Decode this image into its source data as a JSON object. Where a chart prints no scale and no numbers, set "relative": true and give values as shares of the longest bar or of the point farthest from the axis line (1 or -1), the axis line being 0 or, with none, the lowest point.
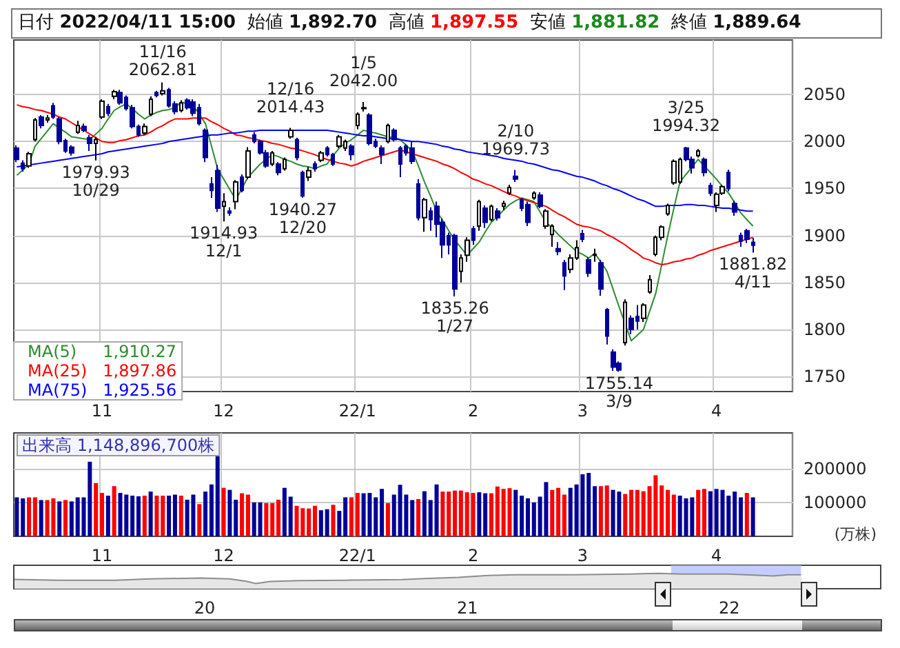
{
  "chart_data": [
    {
      "type": "candlestick",
      "colors": [
        "#000099",
        "#000099",
        "#ffffff",
        "#ffffff",
        "#000099",
        "#ffffff",
        "#000099",
        "#000099",
        "#000099",
        "#000099",
        "#ffffff",
        "#000099",
        "#000099",
        "#ffffff",
        "#ffffff",
        "#000099",
        "#ffffff",
        "#000099",
        "#000099",
        "#000099",
        "#000099",
        "#ffffff",
        "#ffffff",
        "#000099",
        "#ffffff",
        "#000099",
        "#000099",
        "#ffffff",
        "#000099",
        "#000099",
        "#000099",
        "#000099",
        "#000099",
        "#000099",
        "#ffffff",
        "#000099",
        "#ffffff",
        "#000099",
        "#ffffff",
        "#000099",
        "#000099",
        "#000099",
        "#ffffff",
        "#000099",
        "#ffffff",
        "#ffffff",
        "#000099",
        "#000099",
        "#ffffff",
        "#000099",
        "#ffffff",
        "#000099",
        "#000099",
        "#ffffff",
        "#ffffff",
        "#000099",
        "#ffffff",
        "#ffffff",
        "#000099",
        "#000099",
        "#000099",
        "#ffffff",
        "#000099",
        "#000099",
        "#000099",
        "#000099",
        "#000099",
        "#ffffff",
        "#000099",
        "#000099",
        "#000099",
        "#000099",
        "#000099",
        "#ffffff",
        "#ffffff",
        "#000099",
        "#ffffff",
        "#000099",
        "#ffffff",
        "#000099",
        "#ffffff",
        "#ffffff",
        "#000099",
        "#000099",
        "#000099",
        "#ffffff",
        "#000099",
        "#ffffff",
        "#ffffff",
        "#000099",
        "#000099",
        "#ffffff",
        "#ffffff",
        "#000099",
        "#000099",
        "#ffffff",
        "#000099",
        "#000099",
        "#000099",
        "#000099",
        "#ffffff",
        "#000099",
        "#000099",
        "#ffffff",
        "#ffffff",
        "#ffffff",
        "#ffffff",
        "#ffffff",
        "#ffffff",
        "#ffffff",
        "#000099",
        "#000099",
        "#ffffff",
        "#000099",
        "#000099",
        "#ffffff",
        "#ffffff",
        "#000099",
        "#000099",
        "#000099",
        "#000099",
        "#000099"
      ],
      "annotations": [
        "日付 2022/04/11 15:00",
        "始値 1,892.70",
        "高値 1,897.55",
        "安値 1,881.82",
        "終値 1,889.64",
        {
          "text": "11/16\n2062.81",
          "y": 2062.81
        },
        {
          "text": "1979.93\n10/29",
          "y": 1979.93
        },
        {
          "text": "1914.93\n12/1",
          "y": 1914.93
        },
        {
          "text": "12/16\n2014.43",
          "y": 2014.43
        },
        {
          "text": "1940.27\n12/20",
          "y": 1940.27
        },
        {
          "text": "1/5\n2042.00",
          "y": 2042.0
        },
        {
          "text": "1835.26\n1/27",
          "y": 1835.26
        },
        {
          "text": "2/10\n1969.73",
          "y": 1969.73
        },
        {
          "text": "1755.14\n3/9",
          "y": 1755.14
        },
        {
          "text": "3/25\n1994.32",
          "y": 1994.32
        },
        {
          "text": "1881.82\n4/11",
          "y": 1881.82
        }
      ],
      "categories": [
        null,
        null,
        null,
        null,
        null,
        null,
        null,
        null,
        null,
        null,
        null,
        null,
        null,
        null,
        "11",
        null,
        null,
        null,
        null,
        null,
        null,
        null,
        null,
        null,
        null,
        null,
        null,
        null,
        null,
        null,
        null,
        null,
        null,
        null,
        "12",
        null,
        null,
        null,
        null,
        null,
        null,
        null,
        null,
        null,
        null,
        null,
        null,
        null,
        null,
        null,
        null,
        null,
        null,
        null,
        null,
        null,
        "22/1",
        null,
        null,
        null,
        null,
        null,
        null,
        null,
        null,
        null,
        null,
        null,
        null,
        null,
        null,
        null,
        null,
        null,
        null,
        "2",
        null,
        null,
        null,
        null,
        null,
        null,
        null,
        null,
        null,
        null,
        null,
        null,
        null,
        null,
        null,
        null,
        null,
        "3",
        null,
        null,
        null,
        null,
        null,
        null,
        null,
        null,
        null,
        null,
        null,
        null,
        null,
        null,
        null,
        null,
        null,
        null,
        null,
        null,
        null,
        "4",
        null,
        null,
        null,
        null,
        null,
        null
      ],
      "ohlc": [
        [
          1993,
          1996,
          1978,
          1981
        ],
        [
          1977,
          1980,
          1968,
          1971
        ],
        [
          1974,
          1989,
          1972,
          1987
        ],
        [
          2002,
          2025,
          2000,
          2023
        ],
        [
          2026,
          2028,
          2014,
          2017
        ],
        [
          2023,
          2028,
          2020,
          2025
        ],
        [
          2038,
          2041,
          2024,
          2026
        ],
        [
          2024,
          2026,
          1997,
          2000
        ],
        [
          2001,
          2003,
          1988,
          1990
        ],
        [
          1994,
          1996,
          1985,
          1988
        ],
        [
          2010,
          2022,
          2008,
          2017
        ],
        [
          2016,
          2019,
          2010,
          2012
        ],
        [
          2004,
          2007,
          1990,
          1998
        ],
        [
          1998,
          2005,
          1979.93,
          2002
        ],
        [
          2026,
          2045,
          2024,
          2043
        ],
        [
          2037,
          2040,
          2027,
          2030
        ],
        [
          2048,
          2055,
          2045,
          2053
        ],
        [
          2052,
          2055,
          2039,
          2041
        ],
        [
          2047,
          2049,
          2033,
          2035
        ],
        [
          2036,
          2039,
          2014,
          2016
        ],
        [
          2016,
          2018,
          2005,
          2007
        ],
        [
          2009,
          2019,
          2007,
          2016
        ],
        [
          2029,
          2048,
          2027,
          2045
        ],
        [
          2052,
          2054,
          2047,
          2049
        ],
        [
          2051,
          2062.81,
          2049,
          2054
        ],
        [
          2055,
          2057,
          2036,
          2038
        ],
        [
          2040,
          2043,
          2029,
          2032
        ],
        [
          2033,
          2044,
          2031,
          2041
        ],
        [
          2044,
          2046,
          2034,
          2036
        ],
        [
          2042,
          2045,
          2027,
          2030
        ],
        [
          2036,
          2040,
          2017,
          2019
        ],
        [
          2012,
          2014,
          1978,
          1983
        ],
        [
          1955,
          1962,
          1940,
          1948
        ],
        [
          1969,
          1975,
          1925,
          1929
        ],
        [
          1931,
          1945,
          1914.93,
          1936
        ],
        [
          1926,
          1930,
          1921,
          1924
        ],
        [
          1936,
          1959,
          1928,
          1957
        ],
        [
          1962,
          1965,
          1946,
          1948
        ],
        [
          1962,
          1994,
          1960,
          1990
        ],
        [
          2007,
          2010,
          1998,
          2000
        ],
        [
          2000,
          2002,
          1986,
          1988
        ],
        [
          1988,
          1991,
          1972,
          1974
        ],
        [
          1976,
          1990,
          1974,
          1988
        ],
        [
          1976,
          1978,
          1964,
          1967
        ],
        [
          1971,
          1983,
          1969,
          1981
        ],
        [
          2005,
          2014.43,
          2003,
          2012
        ],
        [
          2002,
          2004,
          1980,
          1983
        ],
        [
          1967,
          1969,
          1940.27,
          1942
        ],
        [
          1962,
          1973,
          1958,
          1969
        ],
        [
          1976,
          1979,
          1968,
          1971
        ],
        [
          1980,
          1990,
          1978,
          1988
        ],
        [
          1993,
          1995,
          1984,
          1986
        ],
        [
          1986,
          1988,
          1974,
          1976
        ],
        [
          1995,
          2007,
          1993,
          2005
        ],
        [
          1993,
          2002,
          1990,
          2000
        ],
        [
          1995,
          1997,
          1980,
          1986
        ],
        [
          2017,
          2031,
          2013,
          2029
        ],
        [
          2035,
          2042.0,
          2032,
          2036
        ],
        [
          2028,
          2030,
          1996,
          1998
        ],
        [
          2000,
          2003,
          1993,
          1995
        ],
        [
          1993,
          1996,
          1976,
          1986
        ],
        [
          2000,
          2019,
          1998,
          2017
        ],
        [
          2012,
          2014,
          2000,
          2002
        ],
        [
          1993,
          1995,
          1962,
          1976
        ],
        [
          1995,
          1997,
          1985,
          1988
        ],
        [
          1993,
          2000,
          1976,
          1979
        ],
        [
          1955,
          1960,
          1916,
          1919
        ],
        [
          1919,
          1940,
          1904,
          1938
        ],
        [
          1926,
          1930,
          1905,
          1917
        ],
        [
          1931,
          1936,
          1898,
          1912
        ],
        [
          1914,
          1918,
          1876,
          1890
        ],
        [
          1900,
          1903,
          1880,
          1890
        ],
        [
          1900,
          1902,
          1835.26,
          1843
        ],
        [
          1862,
          1880,
          1850,
          1876
        ],
        [
          1879,
          1898,
          1872,
          1895
        ],
        [
          1907,
          1910,
          1890,
          1895
        ],
        [
          1910,
          1938,
          1905,
          1936
        ],
        [
          1929,
          1932,
          1908,
          1914
        ],
        [
          1917,
          1933,
          1915,
          1931
        ],
        [
          1926,
          1929,
          1916,
          1919
        ],
        [
          1931,
          1937,
          1927,
          1934
        ],
        [
          1945,
          1954,
          1943,
          1951
        ],
        [
          1963,
          1969.73,
          1957,
          1960
        ],
        [
          1938,
          1940,
          1926,
          1929
        ],
        [
          1933,
          1936,
          1910,
          1914
        ],
        [
          1940,
          1947,
          1938,
          1945
        ],
        [
          1943,
          1946,
          1929,
          1931
        ],
        [
          1910,
          1928,
          1907,
          1926
        ],
        [
          1901,
          1912,
          1888,
          1910
        ],
        [
          1886,
          1893,
          1879,
          1883
        ],
        [
          1871,
          1874,
          1842,
          1857
        ],
        [
          1864,
          1880,
          1860,
          1876
        ],
        [
          1876,
          1895,
          1874,
          1887
        ],
        [
          1902,
          1906,
          1893,
          1896
        ],
        [
          1874,
          1877,
          1856,
          1860
        ],
        [
          1879,
          1886,
          1872,
          1880
        ],
        [
          1871,
          1874,
          1836,
          1843
        ],
        [
          1821,
          1823,
          1784,
          1793
        ],
        [
          1776,
          1779,
          1756,
          1760
        ],
        [
          1764,
          1766,
          1755.14,
          1757
        ],
        [
          1786,
          1832,
          1783,
          1829
        ],
        [
          1812,
          1815,
          1795,
          1800
        ],
        [
          1814,
          1826,
          1800,
          1809
        ],
        [
          1812,
          1828,
          1808,
          1826
        ],
        [
          1840,
          1858,
          1838,
          1853
        ],
        [
          1880,
          1900,
          1878,
          1898
        ],
        [
          1898,
          1911,
          1895,
          1909
        ],
        [
          1923,
          1934,
          1921,
          1932
        ],
        [
          1956,
          1981,
          1954,
          1979
        ],
        [
          1957,
          1983,
          1955,
          1981
        ],
        [
          1993,
          1994.32,
          1979,
          1981
        ],
        [
          1981,
          1984,
          1966,
          1972
        ],
        [
          1985,
          1992,
          1983,
          1990
        ],
        [
          1981,
          1983,
          1963,
          1967
        ],
        [
          1953,
          1956,
          1942,
          1945
        ],
        [
          1932,
          1946,
          1925,
          1944
        ],
        [
          1945,
          1954,
          1943,
          1952
        ],
        [
          1967,
          1970,
          1947,
          1950
        ],
        [
          1934,
          1937,
          1921,
          1925
        ],
        [
          1900,
          1903,
          1888,
          1894
        ],
        [
          1905,
          1907,
          1892,
          1896
        ],
        [
          1892.7,
          1897.55,
          1881.82,
          1889.64
        ]
      ],
      "series": [
        {
          "type": "line",
          "name": "MA(5)     1,910.27",
          "color": "#2e8b2e",
          "values": [
            1964,
            1970,
            1976,
            1995,
            2003,
            2011,
            2019,
            2014,
            2010,
            2005,
            2004,
            2003,
            2002,
            2008,
            2014,
            2024,
            2033,
            2037,
            2040,
            2035,
            2029,
            2024,
            2028,
            2031,
            2033,
            2034,
            2036,
            2042,
            2040,
            2038,
            2029,
            2019,
            1995,
            1971,
            1960,
            1949,
            1938,
            1950,
            1962,
            1969,
            1976,
            1981,
            1986,
            1984,
            1981,
            1979,
            1976,
            1974,
            1973,
            1971,
            1974,
            1976,
            1985,
            1993,
            1998,
            2002,
            2007,
            2012,
            2010,
            2009,
            2007,
            2005,
            2004,
            2002,
            1996,
            1990,
            1974,
            1957,
            1942,
            1926,
            1916,
            1905,
            1895,
            1887,
            1879,
            1886,
            1893,
            1904,
            1914,
            1920,
            1927,
            1933,
            1937,
            1940,
            1938,
            1936,
            1925,
            1914,
            1908,
            1901,
            1895,
            1889,
            1883,
            1880,
            1876,
            1881,
            1872,
            1862,
            1843,
            1824,
            1806,
            1788,
            1794,
            1800,
            1819,
            1838,
            1869,
            1900,
            1929,
            1957,
            1965,
            1973,
            1981,
            1974,
            1967,
            1960,
            1952,
            1945,
            1935,
            1924,
            1917,
            1910
          ]
        },
        {
          "type": "line",
          "name": "MA(25)   1,897.86",
          "color": "#ff0000",
          "values": [
            2039,
            2037,
            2036,
            2034,
            2033,
            2031,
            2029,
            2026,
            2024,
            2020,
            2016,
            2012,
            2008,
            2004,
            2000,
            1999,
            1999,
            2001,
            2002,
            2004,
            2006,
            2007,
            2010,
            2014,
            2017,
            2021,
            2024,
            2024,
            2024,
            2025,
            2025,
            2025,
            2021,
            2018,
            2014,
            2011,
            2007,
            2006,
            2004,
            2003,
            2001,
            2000,
            1998,
            1997,
            1995,
            1993,
            1992,
            1990,
            1988,
            1986,
            1983,
            1981,
            1979,
            1977,
            1976,
            1974,
            1976,
            1979,
            1981,
            1983,
            1985,
            1987,
            1989,
            1991,
            1989,
            1987,
            1985,
            1983,
            1981,
            1979,
            1976,
            1974,
            1971,
            1967,
            1964,
            1960,
            1958,
            1955,
            1953,
            1950,
            1947,
            1944,
            1942,
            1939,
            1937,
            1935,
            1933,
            1931,
            1927,
            1923,
            1920,
            1916,
            1912,
            1910,
            1909,
            1907,
            1905,
            1901,
            1898,
            1894,
            1890,
            1885,
            1881,
            1876,
            1874,
            1871,
            1869,
            1870,
            1872,
            1873,
            1875,
            1876,
            1879,
            1881,
            1884,
            1886,
            1888,
            1890,
            1892,
            1894,
            1896,
            1898
          ]
        },
        {
          "type": "line",
          "name": "MA(75)   1,925.56",
          "color": "#0000ff",
          "values": [
            1973,
            1974,
            1975,
            1976,
            1977,
            1978,
            1979,
            1980,
            1981,
            1982,
            1983,
            1984,
            1985,
            1986,
            1987,
            1989,
            1990,
            1991,
            1992,
            1993,
            1994,
            1995,
            1996,
            1997,
            1998,
            2000,
            2001,
            2002,
            2003,
            2004,
            2005,
            2006,
            2007,
            2007,
            2008,
            2009,
            2009,
            2010,
            2011,
            2011,
            2012,
            2012,
            2012,
            2012,
            2012,
            2012,
            2012,
            2012,
            2012,
            2012,
            2012,
            2012,
            2011,
            2010,
            2009,
            2008,
            2007,
            2006,
            2006,
            2005,
            2004,
            2003,
            2003,
            2002,
            2001,
            2000,
            2000,
            1999,
            1998,
            1997,
            1995,
            1994,
            1992,
            1991,
            1989,
            1988,
            1987,
            1986,
            1985,
            1984,
            1982,
            1981,
            1980,
            1979,
            1977,
            1976,
            1974,
            1972,
            1970,
            1969,
            1967,
            1965,
            1963,
            1962,
            1960,
            1958,
            1955,
            1953,
            1950,
            1948,
            1945,
            1942,
            1939,
            1937,
            1934,
            1931,
            1931,
            1932,
            1932,
            1932,
            1933,
            1933,
            1932,
            1932,
            1931,
            1930,
            1929,
            1929,
            1928,
            1927,
            1926,
            1926
          ]
        }
      ],
      "ylim": [
        1734,
        2108
      ],
      "yticks": [
        1750,
        1800,
        1850,
        1900,
        1950,
        2000,
        2050
      ],
      "grid": true,
      "legend": "bottom left",
      "marker": "none",
      "line_style": "solid"
    },
    {
      "type": "bar",
      "annotations": [
        "出来高 1,148,896,700株"
      ],
      "ylabel": "(万株)",
      "categories": [
        null,
        null,
        null,
        null,
        null,
        null,
        null,
        null,
        null,
        null,
        null,
        null,
        null,
        null,
        "11",
        null,
        null,
        null,
        null,
        null,
        null,
        null,
        null,
        null,
        null,
        null,
        null,
        null,
        null,
        null,
        null,
        null,
        null,
        null,
        "12",
        null,
        null,
        null,
        null,
        null,
        null,
        null,
        null,
        null,
        null,
        null,
        null,
        null,
        null,
        null,
        null,
        null,
        null,
        null,
        null,
        null,
        "22/1",
        null,
        null,
        null,
        null,
        null,
        null,
        null,
        null,
        null,
        null,
        null,
        null,
        null,
        null,
        null,
        null,
        null,
        null,
        "2",
        null,
        null,
        null,
        null,
        null,
        null,
        null,
        null,
        null,
        null,
        null,
        null,
        null,
        null,
        null,
        null,
        null,
        "3",
        null,
        null,
        null,
        null,
        null,
        null,
        null,
        null,
        null,
        null,
        null,
        null,
        null,
        null,
        null,
        null,
        null,
        null,
        null,
        null,
        null,
        "4",
        null,
        null,
        null,
        null,
        null,
        null
      ],
      "values": [
        115000,
        112000,
        115000,
        115000,
        107000,
        107000,
        112000,
        103000,
        107000,
        103000,
        115000,
        115000,
        220000,
        157000,
        128000,
        120000,
        148000,
        128000,
        123000,
        120000,
        118000,
        120000,
        132000,
        120000,
        120000,
        120000,
        123000,
        120000,
        108000,
        123000,
        95000,
        132000,
        153000,
        253000,
        143000,
        137000,
        108000,
        127000,
        123000,
        100000,
        100000,
        98000,
        98000,
        108000,
        143000,
        117000,
        90000,
        83000,
        82000,
        90000,
        77000,
        80000,
        93000,
        75000,
        115000,
        115000,
        128000,
        127000,
        128000,
        115000,
        140000,
        98000,
        123000,
        152000,
        123000,
        107000,
        110000,
        133000,
        107000,
        153000,
        132000,
        132000,
        135000,
        135000,
        130000,
        128000,
        130000,
        127000,
        127000,
        147000,
        140000,
        142000,
        137000,
        120000,
        112000,
        100000,
        117000,
        160000,
        137000,
        143000,
        123000,
        143000,
        153000,
        183000,
        187000,
        148000,
        148000,
        150000,
        137000,
        132000,
        125000,
        137000,
        137000,
        133000,
        148000,
        180000,
        150000,
        137000,
        123000,
        120000,
        112000,
        115000,
        137000,
        140000,
        133000,
        140000,
        137000,
        120000,
        132000,
        115000,
        128000,
        115000
      ],
      "colors": [
        "#000099",
        "#000099",
        "#ff0000",
        "#ff0000",
        "#000099",
        "#ff0000",
        "#ff0000",
        "#000099",
        "#ff0000",
        "#000099",
        "#000099",
        "#000099",
        "#000099",
        "#ff0000",
        "#ff0000",
        "#000099",
        "#ff0000",
        "#000099",
        "#000099",
        "#000099",
        "#000099",
        "#ff0000",
        "#000099",
        "#ff0000",
        "#ff0000",
        "#000099",
        "#000099",
        "#ff0000",
        "#000099",
        "#000099",
        "#ff0000",
        "#000099",
        "#000099",
        "#000099",
        "#ff0000",
        "#000099",
        "#000099",
        "#ff0000",
        "#ff0000",
        "#000099",
        "#000099",
        "#ff0000",
        "#ff0000",
        "#ff0000",
        "#000099",
        "#000099",
        "#ff0000",
        "#ff0000",
        "#ff0000",
        "#ff0000",
        "#000099",
        "#000099",
        "#ff0000",
        "#000099",
        "#000099",
        "#ff0000",
        "#ff0000",
        "#000099",
        "#000099",
        "#000099",
        "#000099",
        "#ff0000",
        "#000099",
        "#000099",
        "#000099",
        "#000099",
        "#ff0000",
        "#000099",
        "#000099",
        "#000099",
        "#ff0000",
        "#ff0000",
        "#ff0000",
        "#ff0000",
        "#ff0000",
        "#ff0000",
        "#000099",
        "#000099",
        "#ff0000",
        "#ff0000",
        "#ff0000",
        "#ff0000",
        "#000099",
        "#000099",
        "#000099",
        "#000099",
        "#000099",
        "#000099",
        "#ff0000",
        "#ff0000",
        "#ff0000",
        "#000099",
        "#000099",
        "#000099",
        "#000099",
        "#000099",
        "#ff0000",
        "#ff0000",
        "#000099",
        "#000099",
        "#ff0000",
        "#ff0000",
        "#ff0000",
        "#ff0000",
        "#ff0000",
        "#ff0000",
        "#ff0000",
        "#ff0000",
        "#ff0000",
        "#000099",
        "#000099",
        "#000099",
        "#ff0000",
        "#ff0000",
        "#000099",
        "#000099",
        "#000099",
        "#000099",
        "#000099",
        "#000099",
        "#ff0000",
        "#000099"
      ],
      "ylim": [
        0,
        305000
      ],
      "yticks": [
        100000,
        200000
      ],
      "grid": true
    },
    {
      "type": "area",
      "relative": true,
      "color": "#8c8c8c",
      "x": [
        "2019-04-11",
        "2019-06-12",
        "2019-08-29",
        "2019-10-16",
        "2019-12-27",
        "2020-02-05",
        "2020-02-28",
        "2020-03-12",
        "2020-04-01",
        "2020-05-11",
        "2020-07-14",
        "2020-10-02",
        "2020-11-03",
        "2020-12-20",
        "2021-01-30",
        "2021-03-10",
        "2021-05-28",
        "2021-08-16",
        "2021-09-09",
        "2021-09-25",
        "2021-10-27",
        "2021-12-30",
        "2022-01-23",
        "2022-03-03",
        "2022-03-24",
        "2022-04-11"
      ],
      "values": [
        0.6,
        0.55,
        0.55,
        0.64,
        0.69,
        0.64,
        0.48,
        0.34,
        0.47,
        0.52,
        0.55,
        0.59,
        0.66,
        0.74,
        0.86,
        0.9,
        0.91,
        0.95,
        0.98,
        1,
        0.95,
        0.95,
        0.91,
        0.83,
        0.91,
        0.9
      ],
      "xlim": [
        "2019-04-10",
        "2022-07-31"
      ],
      "xticks": [
        {
          "value": "2020-01-01",
          "label": "20"
        },
        {
          "value": "2021-01-01",
          "label": "21"
        },
        {
          "value": "2022-01-01",
          "label": "22"
        }
      ],
      "bands": [
        {
          "axis": "x",
          "from": "2021-10-12",
          "to": "2022-04-11",
          "color": "#b4c2ff"
        }
      ]
    }
  ]
}
